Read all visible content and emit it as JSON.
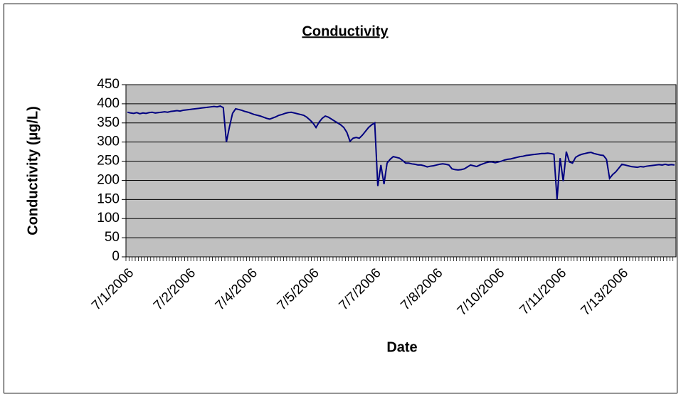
{
  "chart_data": {
    "type": "line",
    "title": "Conductivity",
    "x_label": "Date",
    "y_label": "Conductivity (µg/L)",
    "categories": [
      "7/1/2006",
      null,
      null,
      null,
      null,
      null,
      null,
      null,
      null,
      null,
      null,
      null,
      null,
      null,
      null,
      null,
      null,
      null,
      null,
      null,
      "7/2/2006",
      null,
      null,
      null,
      null,
      null,
      null,
      null,
      null,
      null,
      null,
      null,
      null,
      null,
      null,
      null,
      null,
      null,
      null,
      null,
      "7/4/2006",
      null,
      null,
      null,
      null,
      null,
      null,
      null,
      null,
      null,
      null,
      null,
      null,
      null,
      null,
      null,
      null,
      null,
      null,
      null,
      "7/5/2006",
      null,
      null,
      null,
      null,
      null,
      null,
      null,
      null,
      null,
      null,
      null,
      null,
      null,
      null,
      null,
      null,
      null,
      null,
      null,
      "7/7/2006",
      null,
      null,
      null,
      null,
      null,
      null,
      null,
      null,
      null,
      null,
      null,
      null,
      null,
      null,
      null,
      null,
      null,
      null,
      null,
      "7/8/2006",
      null,
      null,
      null,
      null,
      null,
      null,
      null,
      null,
      null,
      null,
      null,
      null,
      null,
      null,
      null,
      null,
      null,
      null,
      null,
      "7/10/2006",
      null,
      null,
      null,
      null,
      null,
      null,
      null,
      null,
      null,
      null,
      null,
      null,
      null,
      null,
      null,
      null,
      null,
      null,
      null,
      "7/11/2006",
      null,
      null,
      null,
      null,
      null,
      null,
      null,
      null,
      null,
      null,
      null,
      null,
      null,
      null,
      null,
      null,
      null,
      null,
      null,
      "7/13/2006",
      null,
      null,
      null,
      null,
      null,
      null,
      null,
      null,
      null,
      null,
      null,
      null,
      null,
      null,
      null,
      null,
      null
    ],
    "values": [
      378,
      376,
      375,
      377,
      374,
      376,
      375,
      377,
      378,
      376,
      377,
      378,
      379,
      378,
      380,
      381,
      382,
      381,
      383,
      384,
      385,
      386,
      387,
      388,
      389,
      390,
      391,
      392,
      393,
      392,
      394,
      390,
      300,
      340,
      375,
      387,
      385,
      383,
      380,
      378,
      375,
      372,
      370,
      368,
      365,
      362,
      360,
      363,
      366,
      370,
      372,
      375,
      377,
      378,
      376,
      374,
      372,
      370,
      365,
      358,
      350,
      338,
      352,
      362,
      368,
      365,
      360,
      355,
      350,
      345,
      338,
      325,
      302,
      310,
      312,
      310,
      318,
      328,
      338,
      345,
      350,
      185,
      240,
      190,
      245,
      255,
      262,
      260,
      258,
      252,
      245,
      245,
      243,
      242,
      240,
      240,
      238,
      235,
      237,
      238,
      240,
      242,
      243,
      242,
      240,
      230,
      228,
      227,
      228,
      230,
      235,
      240,
      238,
      236,
      240,
      243,
      246,
      248,
      248,
      246,
      248,
      250,
      253,
      255,
      256,
      258,
      260,
      262,
      263,
      265,
      266,
      267,
      268,
      269,
      270,
      270,
      271,
      270,
      268,
      150,
      258,
      198,
      275,
      248,
      245,
      260,
      265,
      268,
      270,
      272,
      273,
      270,
      268,
      266,
      265,
      255,
      205,
      215,
      222,
      232,
      242,
      240,
      238,
      236,
      235,
      234,
      236,
      235,
      237,
      238,
      239,
      240,
      241,
      240,
      242,
      240,
      241,
      240
    ],
    "color": "#000080",
    "ylim": [
      0,
      450
    ],
    "yticks": [
      0,
      50,
      100,
      150,
      200,
      250,
      300,
      350,
      400,
      450
    ],
    "grid": true
  }
}
